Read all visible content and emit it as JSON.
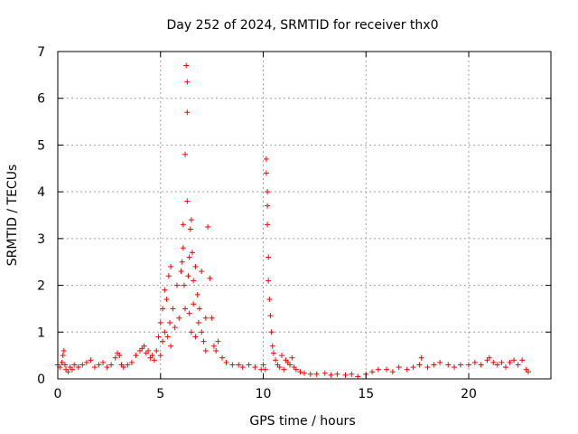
{
  "chart_data": {
    "type": "scatter",
    "title": "Day 252 of 2024, SRMTID for receiver thx0",
    "xlabel": "GPS time / hours",
    "ylabel": "SRMTID / TECUs",
    "xlim": [
      0,
      24
    ],
    "ylim": [
      0,
      7
    ],
    "xticks": [
      0,
      5,
      10,
      15,
      20
    ],
    "yticks": [
      0,
      1,
      2,
      3,
      4,
      5,
      6,
      7
    ],
    "grid": true,
    "marker": "+",
    "color": "#ff0000",
    "series": [
      {
        "name": "SRMTID",
        "x": [
          0.0,
          0.1,
          0.2,
          0.25,
          0.3,
          0.35,
          0.4,
          0.5,
          0.6,
          0.7,
          0.8,
          1.0,
          1.2,
          1.4,
          1.6,
          1.8,
          2.0,
          2.2,
          2.4,
          2.6,
          2.8,
          2.9,
          3.0,
          3.1,
          3.2,
          3.4,
          3.6,
          3.8,
          4.0,
          4.1,
          4.2,
          4.3,
          4.4,
          4.5,
          4.6,
          4.7,
          4.8,
          4.9,
          5.0,
          5.0,
          5.1,
          5.1,
          5.2,
          5.2,
          5.3,
          5.35,
          5.4,
          5.45,
          5.5,
          5.5,
          5.6,
          5.7,
          5.8,
          5.9,
          6.0,
          6.05,
          6.1,
          6.1,
          6.15,
          6.2,
          6.2,
          6.25,
          6.3,
          6.3,
          6.3,
          6.35,
          6.4,
          6.4,
          6.45,
          6.5,
          6.5,
          6.55,
          6.6,
          6.6,
          6.7,
          6.7,
          6.8,
          6.85,
          6.9,
          7.0,
          7.0,
          7.1,
          7.2,
          7.2,
          7.3,
          7.4,
          7.5,
          7.6,
          7.7,
          7.8,
          8.0,
          8.2,
          8.5,
          8.8,
          9.0,
          9.3,
          9.6,
          9.9,
          10.0,
          10.1,
          10.15,
          10.15,
          10.2,
          10.2,
          10.2,
          10.25,
          10.25,
          10.3,
          10.35,
          10.4,
          10.45,
          10.5,
          10.6,
          10.7,
          10.8,
          10.9,
          11.0,
          11.1,
          11.2,
          11.3,
          11.4,
          11.5,
          11.6,
          11.8,
          12.0,
          12.3,
          12.6,
          13.0,
          13.3,
          13.6,
          14.0,
          14.3,
          14.6,
          15.0,
          15.3,
          15.6,
          16.0,
          16.3,
          16.6,
          17.0,
          17.3,
          17.6,
          17.7,
          18.0,
          18.3,
          18.6,
          19.0,
          19.3,
          19.6,
          20.0,
          20.3,
          20.6,
          20.9,
          21.0,
          21.2,
          21.4,
          21.6,
          21.8,
          22.0,
          22.2,
          22.4,
          22.6,
          22.8,
          22.9
        ],
        "y": [
          0.3,
          0.25,
          0.35,
          0.5,
          0.6,
          0.3,
          0.2,
          0.15,
          0.25,
          0.2,
          0.3,
          0.25,
          0.3,
          0.35,
          0.4,
          0.25,
          0.3,
          0.35,
          0.25,
          0.3,
          0.45,
          0.55,
          0.5,
          0.3,
          0.25,
          0.3,
          0.35,
          0.5,
          0.6,
          0.65,
          0.7,
          0.55,
          0.6,
          0.45,
          0.5,
          0.4,
          0.6,
          0.9,
          1.2,
          0.5,
          1.5,
          0.8,
          1.9,
          1.0,
          1.7,
          0.9,
          2.2,
          1.2,
          2.4,
          0.7,
          1.5,
          1.1,
          2.0,
          1.3,
          2.3,
          2.5,
          2.8,
          3.3,
          2.0,
          4.8,
          1.5,
          6.7,
          6.35,
          5.7,
          3.8,
          2.2,
          2.6,
          1.4,
          3.2,
          3.4,
          1.0,
          2.7,
          2.1,
          1.6,
          2.4,
          0.9,
          1.8,
          1.2,
          1.5,
          2.3,
          1.0,
          0.8,
          1.3,
          0.6,
          3.25,
          2.15,
          1.3,
          0.7,
          0.6,
          0.8,
          0.45,
          0.35,
          0.3,
          0.3,
          0.25,
          0.3,
          0.25,
          0.2,
          0.3,
          0.2,
          4.7,
          4.4,
          4.0,
          3.7,
          3.3,
          2.6,
          2.1,
          1.7,
          1.35,
          1.0,
          0.7,
          0.55,
          0.4,
          0.3,
          0.25,
          0.5,
          0.2,
          0.4,
          0.35,
          0.3,
          0.45,
          0.25,
          0.2,
          0.15,
          0.12,
          0.1,
          0.1,
          0.12,
          0.08,
          0.1,
          0.08,
          0.1,
          0.05,
          0.1,
          0.15,
          0.2,
          0.2,
          0.15,
          0.25,
          0.2,
          0.25,
          0.3,
          0.45,
          0.25,
          0.3,
          0.35,
          0.3,
          0.25,
          0.3,
          0.3,
          0.35,
          0.3,
          0.4,
          0.45,
          0.35,
          0.3,
          0.35,
          0.25,
          0.35,
          0.4,
          0.3,
          0.4,
          0.2,
          0.15
        ]
      }
    ]
  }
}
